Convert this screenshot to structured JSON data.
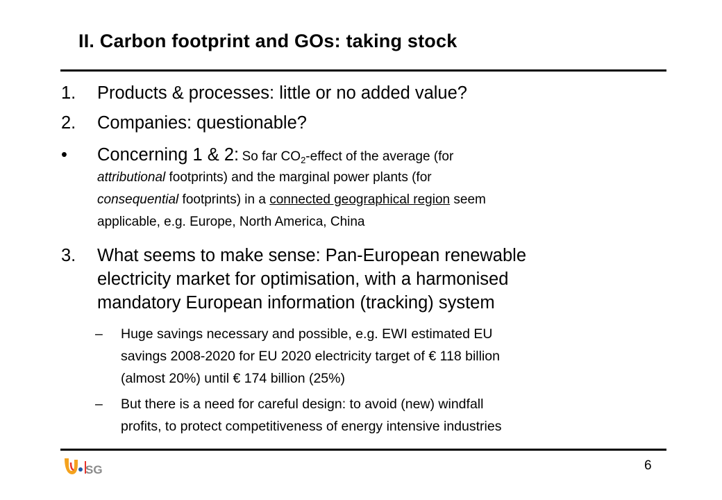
{
  "slide": {
    "title": "II. Carbon footprint and GOs: taking stock",
    "page_number": "6",
    "logo_text": "SG"
  },
  "items": [
    {
      "marker": "1.",
      "text": "Products & processes: little or no added value?"
    },
    {
      "marker": "2.",
      "text": "Companies: questionable?"
    }
  ],
  "bullet": {
    "marker": "•",
    "lead": "Concerning 1 & 2:",
    "line1_a": "So far CO",
    "line1_sub": "2",
    "line1_b": "-effect of the average (for",
    "line2_em": "attributional",
    "line2_rest": "footprints) and the marginal power plants (for",
    "line3_em": "consequential",
    "line3_a": "footprints) in a",
    "line3_ul": "connected geographical region",
    "line3_b": "seem",
    "line4": "applicable, e.g. Europe, North America, China"
  },
  "item3": {
    "marker": "3.",
    "lines": [
      "What seems to make sense: Pan-European renewable",
      "electricity market for optimisation, with a harmonised",
      "mandatory European information (tracking) system"
    ]
  },
  "subitems": [
    {
      "marker": "–",
      "lines": [
        "Huge savings necessary and possible, e.g. EWI estimated EU",
        "savings 2008-2020 for EU 2020 electricity target of € 118 billion",
        "(almost 20%) until € 174 billion (25%)"
      ]
    },
    {
      "marker": "–",
      "lines": [
        "But there is a need for careful design: to avoid (new) windfall",
        "profits, to protect competitiveness of energy intensive industries"
      ]
    }
  ]
}
